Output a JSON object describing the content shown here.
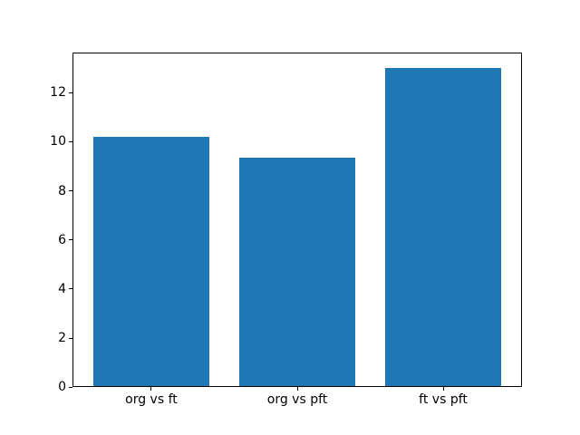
{
  "chart_data": {
    "type": "bar",
    "title": "",
    "xlabel": "",
    "ylabel": "",
    "categories": [
      "org vs ft",
      "org vs pft",
      "ft vs pft"
    ],
    "values": [
      10.2,
      9.35,
      13.0
    ],
    "yticks": [
      0,
      2,
      4,
      6,
      8,
      10,
      12
    ],
    "ylim": [
      0,
      13.65
    ],
    "xlim": [
      -0.54,
      2.54
    ],
    "bar_width": 0.8,
    "bar_color": "#1f77b4",
    "axis_color": "#000000",
    "text_color": "#000000",
    "background_color": "#ffffff",
    "grid": false,
    "legend": "none"
  }
}
